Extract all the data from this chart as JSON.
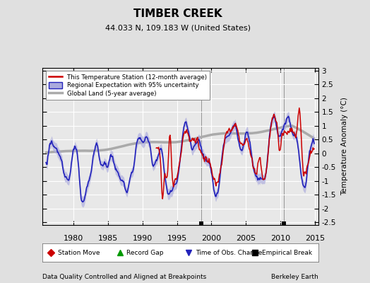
{
  "title": "TIMBER CREEK",
  "subtitle": "44.033 N, 109.183 W (United States)",
  "xlabel_left": "Data Quality Controlled and Aligned at Breakpoints",
  "xlabel_right": "Berkeley Earth",
  "ylabel": "Temperature Anomaly (°C)",
  "xlim": [
    1975.5,
    2015.5
  ],
  "ylim": [
    -2.6,
    3.1
  ],
  "yticks": [
    -2.5,
    -2,
    -1.5,
    -1,
    -0.5,
    0,
    0.5,
    1,
    1.5,
    2,
    2.5,
    3
  ],
  "xticks": [
    1980,
    1985,
    1990,
    1995,
    2000,
    2005,
    2010,
    2015
  ],
  "bg_color": "#e0e0e0",
  "plot_bg_color": "#e8e8e8",
  "grid_color": "#ffffff",
  "station_color": "#cc0000",
  "regional_color": "#2222bb",
  "regional_fill": "#aaaadd",
  "global_color": "#aaaaaa",
  "empirical_break_years": [
    1998.5,
    2010.5
  ],
  "station_start_year": 1992.0
}
